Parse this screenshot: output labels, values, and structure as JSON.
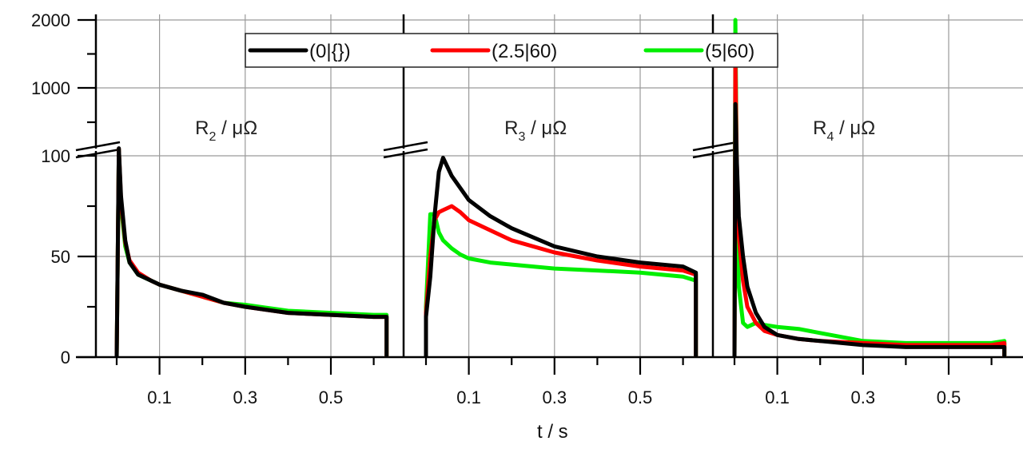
{
  "chart_data": {
    "type": "line",
    "title": "",
    "xlabel": "t / s",
    "ylabel": "",
    "y_axis": {
      "broken": true,
      "lower_range": [
        0,
        100
      ],
      "upper_range": [
        100,
        2000
      ],
      "tick_labels": [
        "0",
        "50",
        "100",
        "1000",
        "2000"
      ]
    },
    "x_tick_labels": [
      "0.1",
      "0.3",
      "0.5"
    ],
    "x_range_per_panel": [
      -0.05,
      0.65
    ],
    "grid": true,
    "legend_position": "top",
    "legend": [
      {
        "name": "(0|{})",
        "color": "#000000"
      },
      {
        "name": "(2.5|60)",
        "color": "#ff0000"
      },
      {
        "name": "(5|60)",
        "color": "#00ee00"
      }
    ],
    "panels": [
      {
        "label": "R",
        "subscript": "2",
        "unit": " / μΩ",
        "x": [
          0.0,
          0.005,
          0.01,
          0.02,
          0.03,
          0.05,
          0.08,
          0.1,
          0.15,
          0.2,
          0.25,
          0.3,
          0.4,
          0.5,
          0.6,
          0.63
        ],
        "series": [
          {
            "name": "(0|{})",
            "values": [
              0,
              115,
              80,
              58,
              47,
              41,
              38,
              36,
              33,
              31,
              27,
              25,
              22,
              21,
              20,
              20
            ]
          },
          {
            "name": "(2.5|60)",
            "values": [
              0,
              110,
              78,
              57,
              48,
              42,
              38,
              36,
              33,
              30,
              27,
              25,
              22,
              21,
              20,
              20
            ]
          },
          {
            "name": "(5|60)",
            "values": [
              0,
              105,
              75,
              55,
              47,
              41,
              38,
              36,
              33,
              30,
              27,
              26,
              23,
              22,
              21,
              21
            ]
          }
        ]
      },
      {
        "label": "R",
        "subscript": "3",
        "unit": " / μΩ",
        "x": [
          0.0,
          0.01,
          0.02,
          0.03,
          0.04,
          0.06,
          0.08,
          0.1,
          0.15,
          0.2,
          0.3,
          0.4,
          0.5,
          0.6,
          0.63
        ],
        "series": [
          {
            "name": "(0|{})",
            "values": [
              20,
              40,
              70,
              92,
              99,
              90,
              84,
              78,
              70,
              64,
              55,
              50,
              47,
              45,
              42
            ]
          },
          {
            "name": "(2.5|60)",
            "values": [
              22,
              50,
              68,
              72,
              73,
              75,
              72,
              68,
              63,
              58,
              52,
              48,
              45,
              43,
              41
            ]
          },
          {
            "name": "(5|60)",
            "values": [
              25,
              71,
              71,
              62,
              58,
              54,
              51,
              49,
              47,
              46,
              44,
              43,
              42,
              40,
              38
            ]
          }
        ]
      },
      {
        "label": "R",
        "subscript": "4",
        "unit": " / μΩ",
        "x": [
          0.0,
          0.002,
          0.005,
          0.01,
          0.02,
          0.03,
          0.05,
          0.07,
          0.1,
          0.15,
          0.2,
          0.3,
          0.4,
          0.5,
          0.6,
          0.63
        ],
        "series": [
          {
            "name": "(0|{})",
            "values": [
              0,
              700,
              100,
              70,
              50,
              35,
              22,
              15,
              11,
              9,
              8,
              6,
              5,
              5,
              5,
              5
            ]
          },
          {
            "name": "(2.5|60)",
            "values": [
              0,
              1400,
              100,
              60,
              38,
              25,
              17,
              13,
              11,
              9,
              8,
              7,
              6,
              6,
              6,
              7
            ]
          },
          {
            "name": "(5|60)",
            "values": [
              0,
              2000,
              100,
              35,
              17,
              15,
              17,
              16,
              15,
              14,
              12,
              8,
              7,
              7,
              7,
              8
            ]
          }
        ]
      }
    ]
  }
}
